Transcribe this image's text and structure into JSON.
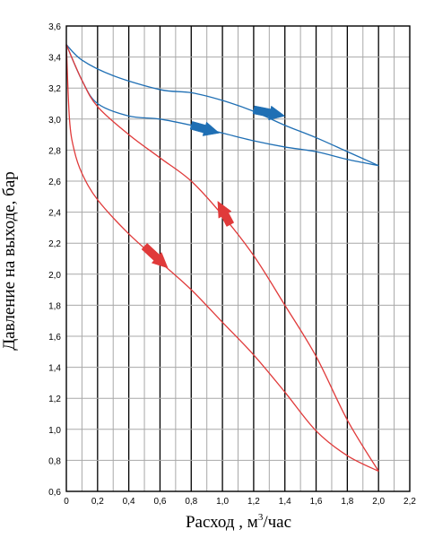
{
  "chart_data": {
    "type": "line",
    "title": "",
    "xlabel_main": "Расход , м",
    "xlabel_sup": "3",
    "xlabel_tail": "/час",
    "ylabel": "Давление на выходе, бар",
    "xlim": [
      0,
      2.2
    ],
    "ylim": [
      0.6,
      3.6
    ],
    "x_ticks": [
      "0",
      "0,2",
      "0,4",
      "0,6",
      "0,8",
      "1,0",
      "1,2",
      "1,4",
      "1,6",
      "1,8",
      "2,0",
      "2,2"
    ],
    "y_ticks": [
      "0,6",
      "0,8",
      "1,0",
      "1,2",
      "1,4",
      "1,6",
      "1,8",
      "2,0",
      "2,2",
      "2,4",
      "2,6",
      "2,8",
      "3,0",
      "3,2",
      "3,4",
      "3,6"
    ],
    "grid": true,
    "legend": "none",
    "series": [
      {
        "color": "#1f6fb4",
        "points": [
          [
            0,
            3.48
          ],
          [
            0.1,
            3.38
          ],
          [
            0.3,
            3.28
          ],
          [
            0.6,
            3.19
          ],
          [
            0.8,
            3.17
          ],
          [
            1.0,
            3.12
          ],
          [
            1.2,
            3.05
          ],
          [
            1.4,
            2.96
          ],
          [
            1.6,
            2.88
          ],
          [
            1.8,
            2.79
          ],
          [
            2.0,
            2.7
          ]
        ]
      },
      {
        "color": "#1f6fb4",
        "points": [
          [
            0,
            3.48
          ],
          [
            0.1,
            3.25
          ],
          [
            0.2,
            3.1
          ],
          [
            0.4,
            3.02
          ],
          [
            0.6,
            3.0
          ],
          [
            0.8,
            2.96
          ],
          [
            1.0,
            2.91
          ],
          [
            1.2,
            2.86
          ],
          [
            1.4,
            2.82
          ],
          [
            1.6,
            2.79
          ],
          [
            1.8,
            2.74
          ],
          [
            2.0,
            2.7
          ]
        ]
      },
      {
        "color": "#e03a3a",
        "points": [
          [
            0,
            3.48
          ],
          [
            0.1,
            3.25
          ],
          [
            0.2,
            3.08
          ],
          [
            0.4,
            2.9
          ],
          [
            0.6,
            2.75
          ],
          [
            0.8,
            2.6
          ],
          [
            1.0,
            2.38
          ],
          [
            1.2,
            2.12
          ],
          [
            1.4,
            1.8
          ],
          [
            1.6,
            1.47
          ],
          [
            1.8,
            1.06
          ],
          [
            2.0,
            0.73
          ]
        ]
      },
      {
        "color": "#e03a3a",
        "points": [
          [
            0,
            3.48
          ],
          [
            0.02,
            3.0
          ],
          [
            0.05,
            2.8
          ],
          [
            0.1,
            2.65
          ],
          [
            0.2,
            2.48
          ],
          [
            0.4,
            2.26
          ],
          [
            0.6,
            2.08
          ],
          [
            0.8,
            1.9
          ],
          [
            1.0,
            1.69
          ],
          [
            1.2,
            1.48
          ],
          [
            1.4,
            1.24
          ],
          [
            1.6,
            0.99
          ],
          [
            1.8,
            0.83
          ],
          [
            2.0,
            0.73
          ]
        ]
      }
    ],
    "arrows": [
      {
        "color": "#1f6fb4",
        "x": 1.2,
        "y": 3.06,
        "dx": 0.2,
        "dy": -0.04
      },
      {
        "color": "#1f6fb4",
        "x": 0.8,
        "y": 2.96,
        "dx": 0.18,
        "dy": -0.05
      },
      {
        "color": "#e03a3a",
        "x": 1.05,
        "y": 2.32,
        "dx": -0.08,
        "dy": 0.15
      },
      {
        "color": "#e03a3a",
        "x": 0.5,
        "y": 2.18,
        "dx": 0.15,
        "dy": -0.14
      }
    ]
  }
}
